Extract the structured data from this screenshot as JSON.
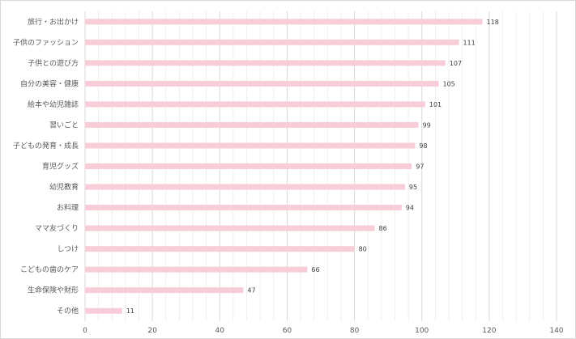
{
  "chart_data": {
    "type": "bar",
    "orientation": "horizontal",
    "categories": [
      "旅行・お出かけ",
      "子供のファッション",
      "子供との遊び方",
      "自分の美容・健康",
      "絵本や幼児雑誌",
      "習いごと",
      "子どもの発育・成長",
      "育児グッズ",
      "幼児教育",
      "お料理",
      "ママ友づくり",
      "しつけ",
      "こどもの歯のケア",
      "生命保険や財形",
      "その他"
    ],
    "values": [
      118,
      111,
      107,
      105,
      101,
      99,
      98,
      97,
      95,
      94,
      86,
      80,
      66,
      47,
      11
    ],
    "xlim": [
      0,
      140
    ],
    "xticks": [
      0,
      20,
      40,
      60,
      80,
      100,
      120,
      140
    ],
    "grid": true,
    "legend": "none",
    "title": "",
    "xlabel": "",
    "ylabel": "",
    "colors": {
      "bar": "#f8cdd8",
      "grid": "#d9d9d9",
      "text": "#595959"
    }
  }
}
